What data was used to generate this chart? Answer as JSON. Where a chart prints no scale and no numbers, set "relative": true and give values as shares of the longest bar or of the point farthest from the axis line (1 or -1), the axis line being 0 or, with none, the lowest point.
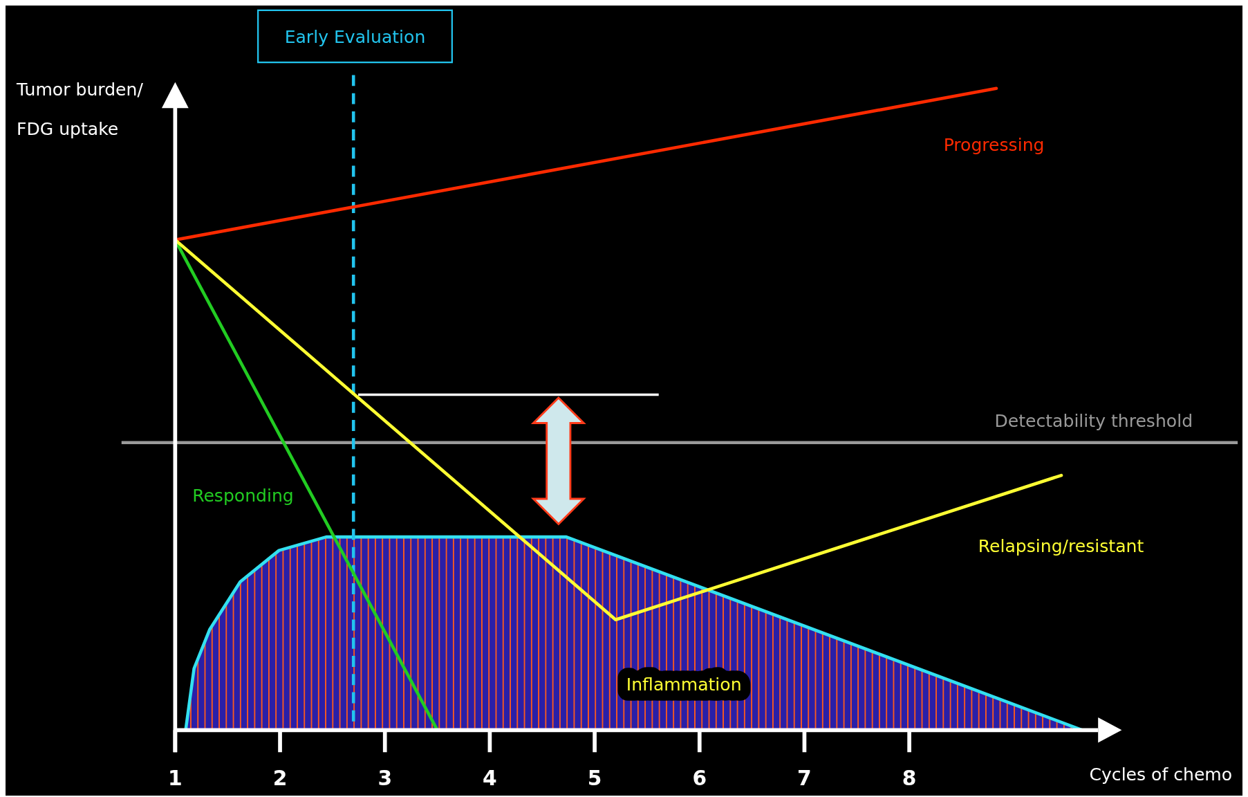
{
  "chart_data": {
    "type": "line",
    "relative": true,
    "xlabel": "Cycles of chemo",
    "ylabel": "Tumor burden/ FDG uptake",
    "xlim": [
      1,
      9.8
    ],
    "xticks": [
      1,
      2,
      3,
      4,
      5,
      6,
      7,
      8
    ],
    "tick_labels": "x",
    "series": [
      {
        "name": "Inflammation",
        "type": "area",
        "color": "#2a1fa8",
        "x": [
          1.1,
          1.18,
          1.33,
          1.62,
          1.99,
          2.44,
          4.73,
          9.65
        ],
        "values": [
          0,
          0.096,
          0.157,
          0.231,
          0.28,
          0.301,
          0.301,
          0
        ]
      },
      {
        "name": "Progressing",
        "color": "#ff2a00",
        "x": [
          1,
          8.83
        ],
        "values": [
          0.764,
          1
        ]
      },
      {
        "name": "Responding",
        "color": "#22cc22",
        "x": [
          1,
          3.5
        ],
        "values": [
          0.764,
          0
        ]
      },
      {
        "name": "Relapsing/resistant",
        "color": "#ffff33",
        "x": [
          1,
          5.2,
          9.45
        ],
        "values": [
          0.764,
          0.172,
          0.397
        ]
      }
    ],
    "ref_lines": [
      {
        "axis": "y",
        "value": 0.448,
        "label": "Detectability threshold",
        "color": "#9a9a9a",
        "line_style": "solid"
      },
      {
        "axis": "x",
        "value": 2.7,
        "label": "Early Evaluation",
        "color": "#22c4ee",
        "line_style": "dashed"
      }
    ]
  }
}
